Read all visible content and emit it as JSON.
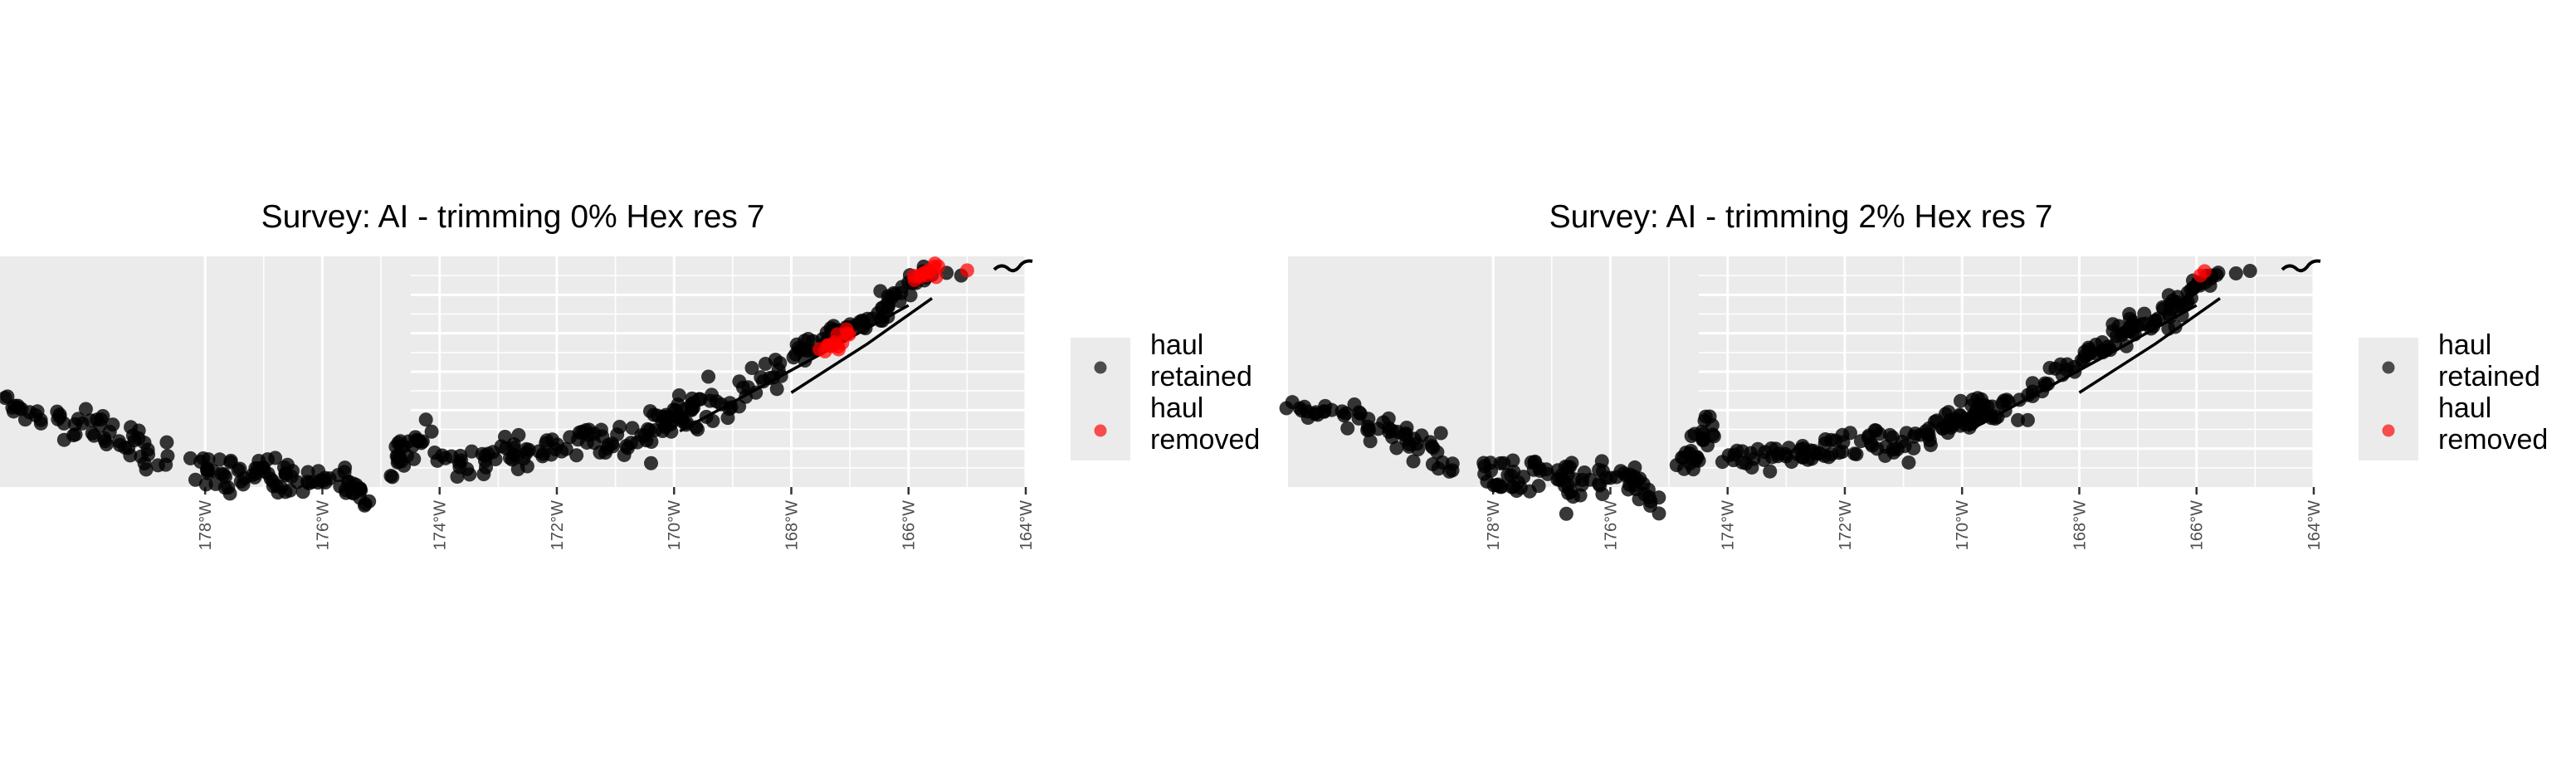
{
  "colors": {
    "panel_background": "#ebebeb",
    "grid": "#ffffff",
    "retained": "#000000",
    "removed": "#ff0000",
    "legend_background": "#ebebeb"
  },
  "chart_data": [
    {
      "type": "scatter",
      "title": "Survey: AI - trimming 0% Hex res 7",
      "xlabel": "",
      "ylabel": "",
      "x_tick_labels": [
        "178°W",
        "176°W",
        "174°W",
        "172°W",
        "170°W",
        "168°W",
        "166°W",
        "164°W"
      ],
      "x_ticks": [
        -178,
        -176,
        -174,
        -172,
        -170,
        -168,
        -166,
        -164
      ],
      "xlim": [
        -181.5,
        -164
      ],
      "ylim": [
        51.0,
        54.3
      ],
      "legend": {
        "position": "right",
        "entries": [
          {
            "label_line1": "haul",
            "label_line2": "retained",
            "color": "#000000"
          },
          {
            "label_line1": "haul",
            "label_line2": "removed",
            "color": "#ff0000"
          }
        ]
      },
      "series": [
        {
          "name": "haul retained",
          "clusters": [
            {
              "x0": -181.4,
              "y0": 52.2,
              "x1": -180.8,
              "y1": 52.0,
              "n": 14,
              "spread": 0.08
            },
            {
              "x0": -180.6,
              "y0": 51.95,
              "x1": -179.8,
              "y1": 51.9,
              "n": 16,
              "spread": 0.1
            },
            {
              "x0": -179.8,
              "y0": 51.8,
              "x1": -178.7,
              "y1": 51.4,
              "n": 28,
              "spread": 0.14
            },
            {
              "x0": -178.2,
              "y0": 51.3,
              "x1": -177.6,
              "y1": 51.05,
              "n": 18,
              "spread": 0.12
            },
            {
              "x0": -177.6,
              "y0": 51.2,
              "x1": -176.6,
              "y1": 51.15,
              "n": 26,
              "spread": 0.12
            },
            {
              "x0": -176.8,
              "y0": 51.1,
              "x1": -175.5,
              "y1": 51.1,
              "n": 30,
              "spread": 0.12
            },
            {
              "x0": -175.6,
              "y0": 51.05,
              "x1": -175.2,
              "y1": 50.8,
              "n": 12,
              "spread": 0.08
            },
            {
              "x0": -174.8,
              "y0": 51.3,
              "x1": -174.3,
              "y1": 51.8,
              "n": 28,
              "spread": 0.16
            },
            {
              "x0": -174.0,
              "y0": 51.35,
              "x1": -172.6,
              "y1": 51.5,
              "n": 30,
              "spread": 0.11
            },
            {
              "x0": -172.7,
              "y0": 51.45,
              "x1": -171.3,
              "y1": 51.75,
              "n": 30,
              "spread": 0.12
            },
            {
              "x0": -171.3,
              "y0": 51.6,
              "x1": -170.0,
              "y1": 51.9,
              "n": 30,
              "spread": 0.12
            },
            {
              "x0": -170.3,
              "y0": 51.85,
              "x1": -169.5,
              "y1": 52.25,
              "n": 26,
              "spread": 0.15
            },
            {
              "x0": -169.8,
              "y0": 52.1,
              "x1": -168.9,
              "y1": 52.15,
              "n": 16,
              "spread": 0.1
            },
            {
              "x0": -168.9,
              "y0": 52.4,
              "x1": -168.1,
              "y1": 52.75,
              "n": 16,
              "spread": 0.09
            },
            {
              "x0": -168.0,
              "y0": 52.8,
              "x1": -167.1,
              "y1": 53.3,
              "n": 24,
              "spread": 0.1
            },
            {
              "x0": -167.3,
              "y0": 53.2,
              "x1": -166.3,
              "y1": 53.5,
              "n": 22,
              "spread": 0.09
            },
            {
              "x0": -166.5,
              "y0": 53.55,
              "x1": -165.7,
              "y1": 54.05,
              "n": 22,
              "spread": 0.07
            },
            {
              "x0": -165.6,
              "y0": 54.05,
              "x1": -165.1,
              "y1": 54.05,
              "n": 3,
              "spread": 0.03
            }
          ]
        },
        {
          "name": "haul removed",
          "clusters": [
            {
              "x0": -167.5,
              "y0": 52.9,
              "x1": -167.0,
              "y1": 53.15,
              "n": 14,
              "spread": 0.07
            },
            {
              "x0": -165.9,
              "y0": 54.0,
              "x1": -165.5,
              "y1": 54.1,
              "n": 12,
              "spread": 0.05
            },
            {
              "x0": -165.0,
              "y0": 54.1,
              "x1": -165.0,
              "y1": 54.1,
              "n": 1,
              "spread": 0.0
            }
          ]
        }
      ]
    },
    {
      "type": "scatter",
      "title": "Survey: AI - trimming 2% Hex res 7",
      "xlabel": "",
      "ylabel": "",
      "x_tick_labels": [
        "178°W",
        "176°W",
        "174°W",
        "172°W",
        "170°W",
        "168°W",
        "166°W",
        "164°W"
      ],
      "x_ticks": [
        -178,
        -176,
        -174,
        -172,
        -170,
        -168,
        -166,
        -164
      ],
      "xlim": [
        -181.5,
        -164
      ],
      "ylim": [
        51.0,
        54.3
      ],
      "legend": {
        "position": "right",
        "entries": [
          {
            "label_line1": "haul",
            "label_line2": "retained",
            "color": "#000000"
          },
          {
            "label_line1": "haul",
            "label_line2": "removed",
            "color": "#ff0000"
          }
        ]
      },
      "series": [
        {
          "name": "haul retained",
          "clusters": [
            {
              "x0": -181.4,
              "y0": 52.2,
              "x1": -180.8,
              "y1": 52.0,
              "n": 14,
              "spread": 0.08
            },
            {
              "x0": -180.6,
              "y0": 51.95,
              "x1": -179.8,
              "y1": 51.9,
              "n": 16,
              "spread": 0.1
            },
            {
              "x0": -179.8,
              "y0": 51.8,
              "x1": -178.7,
              "y1": 51.4,
              "n": 28,
              "spread": 0.14
            },
            {
              "x0": -178.2,
              "y0": 51.3,
              "x1": -177.6,
              "y1": 51.05,
              "n": 18,
              "spread": 0.12
            },
            {
              "x0": -177.6,
              "y0": 51.2,
              "x1": -176.6,
              "y1": 51.15,
              "n": 26,
              "spread": 0.12
            },
            {
              "x0": -176.8,
              "y0": 51.1,
              "x1": -175.5,
              "y1": 51.1,
              "n": 30,
              "spread": 0.12
            },
            {
              "x0": -175.6,
              "y0": 51.05,
              "x1": -175.2,
              "y1": 50.8,
              "n": 12,
              "spread": 0.08
            },
            {
              "x0": -174.8,
              "y0": 51.3,
              "x1": -174.3,
              "y1": 51.8,
              "n": 28,
              "spread": 0.16
            },
            {
              "x0": -174.0,
              "y0": 51.35,
              "x1": -172.6,
              "y1": 51.5,
              "n": 30,
              "spread": 0.11
            },
            {
              "x0": -172.7,
              "y0": 51.45,
              "x1": -171.3,
              "y1": 51.75,
              "n": 30,
              "spread": 0.12
            },
            {
              "x0": -171.3,
              "y0": 51.6,
              "x1": -170.0,
              "y1": 51.9,
              "n": 30,
              "spread": 0.12
            },
            {
              "x0": -170.3,
              "y0": 51.85,
              "x1": -169.5,
              "y1": 52.25,
              "n": 26,
              "spread": 0.15
            },
            {
              "x0": -169.8,
              "y0": 52.1,
              "x1": -168.9,
              "y1": 52.15,
              "n": 16,
              "spread": 0.1
            },
            {
              "x0": -168.9,
              "y0": 52.4,
              "x1": -168.1,
              "y1": 52.75,
              "n": 16,
              "spread": 0.09
            },
            {
              "x0": -168.0,
              "y0": 52.8,
              "x1": -167.1,
              "y1": 53.3,
              "n": 28,
              "spread": 0.1
            },
            {
              "x0": -167.3,
              "y0": 53.2,
              "x1": -166.3,
              "y1": 53.5,
              "n": 22,
              "spread": 0.09
            },
            {
              "x0": -166.5,
              "y0": 53.55,
              "x1": -165.7,
              "y1": 54.05,
              "n": 26,
              "spread": 0.07
            },
            {
              "x0": -165.6,
              "y0": 54.05,
              "x1": -165.1,
              "y1": 54.05,
              "n": 3,
              "spread": 0.03
            }
          ]
        },
        {
          "name": "haul removed",
          "clusters": [
            {
              "x0": -165.95,
              "y0": 54.02,
              "x1": -165.85,
              "y1": 54.05,
              "n": 2,
              "spread": 0.03
            }
          ]
        }
      ]
    }
  ]
}
